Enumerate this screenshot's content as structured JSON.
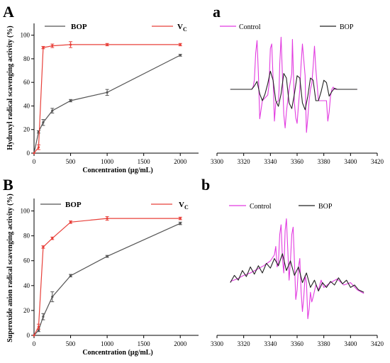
{
  "chart_data": [
    {
      "panel": "A",
      "type": "line",
      "xlabel": "Concentration (µg/mL)",
      "ylabel": "Hydroxyl radical scavenging activity (%)",
      "xlim": [
        0,
        2250
      ],
      "ylim": [
        0,
        110
      ],
      "xticks": [
        0,
        500,
        1000,
        1500,
        2000
      ],
      "yticks": [
        0,
        20,
        40,
        60,
        80,
        100
      ],
      "legend": "top",
      "series": [
        {
          "name": "BOP",
          "color": "#555555",
          "x": [
            0,
            62.5,
            125,
            250,
            500,
            1000,
            2000
          ],
          "y": [
            0,
            18,
            26,
            36,
            44.5,
            51.5,
            83
          ],
          "err": [
            0,
            1,
            2.5,
            2,
            1,
            2.5,
            0.8
          ]
        },
        {
          "name": "VC",
          "name_main": "V",
          "name_sub": "C",
          "color": "#e8403a",
          "x": [
            0,
            62.5,
            125,
            250,
            500,
            1000,
            2000
          ],
          "y": [
            0,
            5,
            89.5,
            91,
            92,
            92,
            92
          ],
          "err": [
            0,
            2,
            1,
            1.5,
            2.5,
            1,
            1
          ]
        }
      ]
    },
    {
      "panel": "a",
      "type": "line",
      "xlim": [
        3300,
        3420
      ],
      "xticks": [
        3300,
        3320,
        3340,
        3360,
        3380,
        3400,
        3420
      ],
      "legend": "top",
      "series": [
        {
          "name": "Control",
          "color": "#e23be0",
          "x": [
            3310,
            3326,
            3327,
            3328,
            3329,
            3330,
            3331,
            3332,
            3334,
            3338,
            3339,
            3340,
            3341,
            3342,
            3343,
            3344,
            3346,
            3346.5,
            3347,
            3348,
            3349,
            3350,
            3351,
            3352,
            3353,
            3354,
            3356,
            3356.5,
            3357,
            3358,
            3359,
            3360,
            3361,
            3362,
            3363,
            3364,
            3366,
            3366.5,
            3367,
            3368,
            3369,
            3370,
            3371,
            3372,
            3373,
            3374,
            3376,
            3382,
            3383,
            3384,
            3385,
            3386,
            3387,
            3388,
            3390,
            3405
          ],
          "y": [
            0.5,
            0.5,
            0.52,
            0.58,
            0.82,
            0.93,
            0.64,
            0.24,
            0.4,
            0.45,
            0.54,
            0.86,
            0.9,
            0.6,
            0.22,
            0.38,
            0.4,
            0.5,
            0.72,
            0.96,
            0.62,
            0.28,
            0.16,
            0.3,
            0.4,
            0.5,
            0.64,
            0.94,
            0.72,
            0.38,
            0.25,
            0.2,
            0.36,
            0.5,
            0.72,
            0.9,
            0.62,
            0.34,
            0.12,
            0.25,
            0.4,
            0.5,
            0.55,
            0.7,
            0.88,
            0.68,
            0.4,
            0.4,
            0.22,
            0.3,
            0.44,
            0.5,
            0.52,
            0.5,
            0.5,
            0.5
          ]
        },
        {
          "name": "BOP",
          "color": "#222222",
          "x": [
            3310,
            3326,
            3328,
            3330,
            3332,
            3334,
            3336,
            3338,
            3340,
            3342,
            3344,
            3346,
            3348,
            3350,
            3352,
            3354,
            3356,
            3358,
            3360,
            3362,
            3364,
            3366,
            3368,
            3370,
            3372,
            3374,
            3376,
            3378,
            3380,
            3382,
            3384,
            3386,
            3388,
            3390,
            3405
          ],
          "y": [
            0.5,
            0.5,
            0.53,
            0.57,
            0.46,
            0.4,
            0.46,
            0.55,
            0.66,
            0.58,
            0.4,
            0.35,
            0.46,
            0.64,
            0.6,
            0.38,
            0.33,
            0.46,
            0.62,
            0.6,
            0.38,
            0.32,
            0.44,
            0.6,
            0.58,
            0.4,
            0.4,
            0.48,
            0.58,
            0.56,
            0.44,
            0.48,
            0.51,
            0.5,
            0.5
          ]
        }
      ]
    },
    {
      "panel": "B",
      "type": "line",
      "xlabel": "Concentration (µg/mL)",
      "ylabel": "Superoxide anion radical scavenging activity (%)",
      "xlim": [
        0,
        2250
      ],
      "ylim": [
        0,
        110
      ],
      "xticks": [
        0,
        500,
        1000,
        1500,
        2000
      ],
      "yticks": [
        0,
        20,
        40,
        60,
        80,
        100
      ],
      "legend": "top",
      "series": [
        {
          "name": "BOP",
          "color": "#555555",
          "x": [
            0,
            62.5,
            125,
            250,
            500,
            1000,
            2000
          ],
          "y": [
            0,
            4,
            15,
            31,
            48,
            63.5,
            90
          ],
          "err": [
            0,
            1,
            2.5,
            4,
            1,
            0.8,
            1
          ]
        },
        {
          "name": "VC",
          "name_main": "V",
          "name_sub": "C",
          "color": "#e8403a",
          "x": [
            0,
            62.5,
            125,
            250,
            500,
            1000,
            2000
          ],
          "y": [
            0,
            7,
            71,
            78,
            91,
            94,
            94
          ],
          "err": [
            0,
            2,
            1,
            1,
            1,
            1.5,
            1
          ]
        }
      ]
    },
    {
      "panel": "b",
      "type": "line",
      "xlim": [
        3300,
        3420
      ],
      "xticks": [
        3300,
        3320,
        3340,
        3360,
        3380,
        3400,
        3420
      ],
      "legend": "top",
      "series": [
        {
          "name": "Control",
          "color": "#e23be0",
          "x": [
            3310,
            3315,
            3320,
            3325,
            3330,
            3335,
            3340,
            3343,
            3344,
            3345,
            3346,
            3347,
            3348,
            3349,
            3350,
            3351,
            3352,
            3353,
            3354,
            3355,
            3356,
            3357,
            3358,
            3359,
            3360,
            3361,
            3362,
            3363,
            3364,
            3365,
            3366,
            3367,
            3368,
            3369,
            3370,
            3371,
            3372,
            3374,
            3376,
            3378,
            3380,
            3385,
            3390,
            3395,
            3400,
            3405,
            3410
          ],
          "y": [
            0.43,
            0.45,
            0.48,
            0.5,
            0.53,
            0.56,
            0.6,
            0.65,
            0.72,
            0.55,
            0.58,
            0.82,
            0.9,
            0.62,
            0.5,
            0.85,
            0.95,
            0.7,
            0.44,
            0.6,
            0.82,
            0.88,
            0.6,
            0.28,
            0.36,
            0.55,
            0.62,
            0.35,
            0.18,
            0.3,
            0.48,
            0.42,
            0.12,
            0.2,
            0.34,
            0.26,
            0.3,
            0.4,
            0.36,
            0.44,
            0.38,
            0.42,
            0.45,
            0.4,
            0.42,
            0.36,
            0.33
          ]
        },
        {
          "name": "BOP",
          "color": "#222222",
          "x": [
            3310,
            3313,
            3316,
            3319,
            3322,
            3325,
            3328,
            3331,
            3334,
            3337,
            3340,
            3343,
            3346,
            3349,
            3352,
            3355,
            3358,
            3361,
            3364,
            3367,
            3370,
            3373,
            3376,
            3379,
            3382,
            3385,
            3388,
            3391,
            3394,
            3397,
            3400,
            3403,
            3406,
            3410
          ],
          "y": [
            0.42,
            0.48,
            0.44,
            0.52,
            0.47,
            0.55,
            0.49,
            0.56,
            0.5,
            0.58,
            0.54,
            0.62,
            0.56,
            0.66,
            0.52,
            0.6,
            0.48,
            0.55,
            0.42,
            0.5,
            0.38,
            0.44,
            0.35,
            0.42,
            0.38,
            0.43,
            0.4,
            0.46,
            0.41,
            0.44,
            0.38,
            0.4,
            0.36,
            0.34
          ]
        }
      ]
    }
  ]
}
